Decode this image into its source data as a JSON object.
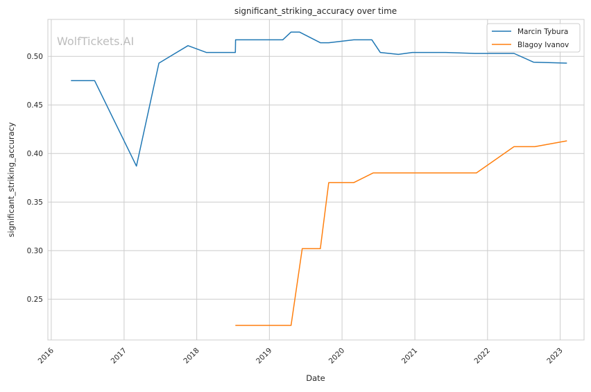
{
  "chart_data": {
    "type": "line",
    "title": "significant_striking_accuracy over time",
    "xlabel": "Date",
    "ylabel": "significant_striking_accuracy",
    "watermark": "WolfTickets.AI",
    "x_tick_labels": [
      "2016",
      "2017",
      "2018",
      "2019",
      "2020",
      "2021",
      "2022",
      "2023"
    ],
    "y_tick_labels": [
      "0.25",
      "0.30",
      "0.35",
      "0.40",
      "0.45",
      "0.50"
    ],
    "y_ticks": [
      0.25,
      0.3,
      0.35,
      0.4,
      0.45,
      0.5
    ],
    "xlim": [
      "2015-12-15",
      "2023-05-01"
    ],
    "ylim": [
      0.208,
      0.538
    ],
    "grid": true,
    "legend": "top-right",
    "series": [
      {
        "name": "Marcin Tybura",
        "color": "#1f77b4",
        "points": [
          [
            "2016-04-09",
            0.475
          ],
          [
            "2016-08-06",
            0.475
          ],
          [
            "2017-03-04",
            0.387
          ],
          [
            "2017-06-25",
            0.493
          ],
          [
            "2017-11-18",
            0.511
          ],
          [
            "2018-02-18",
            0.504
          ],
          [
            "2018-07-14",
            0.504
          ],
          [
            "2018-07-15",
            0.517
          ],
          [
            "2019-03-09",
            0.517
          ],
          [
            "2019-04-20",
            0.525
          ],
          [
            "2019-06-01",
            0.525
          ],
          [
            "2019-09-14",
            0.514
          ],
          [
            "2019-10-26",
            0.514
          ],
          [
            "2020-02-29",
            0.517
          ],
          [
            "2020-05-30",
            0.517
          ],
          [
            "2020-07-11",
            0.504
          ],
          [
            "2020-10-10",
            0.502
          ],
          [
            "2020-12-19",
            0.504
          ],
          [
            "2021-06-05",
            0.504
          ],
          [
            "2021-10-30",
            0.503
          ],
          [
            "2022-05-14",
            0.503
          ],
          [
            "2022-08-20",
            0.494
          ],
          [
            "2023-02-04",
            0.493
          ]
        ]
      },
      {
        "name": "Blagoy Ivanov",
        "color": "#ff7f0e",
        "points": [
          [
            "2018-07-14",
            0.223
          ],
          [
            "2019-04-20",
            0.223
          ],
          [
            "2019-06-15",
            0.302
          ],
          [
            "2019-09-14",
            0.302
          ],
          [
            "2019-10-26",
            0.37
          ],
          [
            "2020-02-29",
            0.37
          ],
          [
            "2020-06-06",
            0.38
          ],
          [
            "2021-11-06",
            0.38
          ],
          [
            "2022-05-14",
            0.407
          ],
          [
            "2022-08-27",
            0.407
          ],
          [
            "2023-02-04",
            0.413
          ]
        ]
      }
    ]
  }
}
